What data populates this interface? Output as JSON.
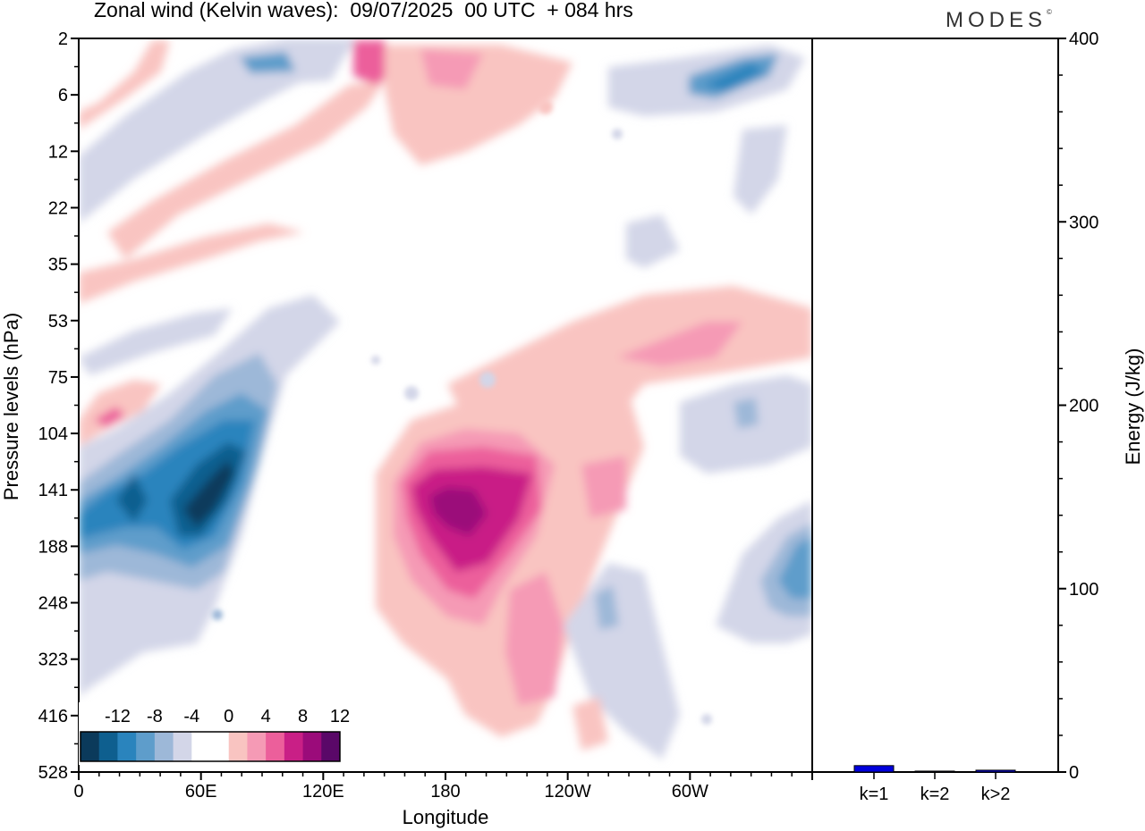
{
  "title": "Zonal wind (Kelvin waves):  09/07/2025  00 UTC  + 084 hrs",
  "logo": "MODES",
  "chart_data": [
    {
      "type": "heatmap",
      "title": "Zonal wind (Kelvin waves):  09/07/2025  00 UTC  + 084 hrs",
      "xlabel": "Longitude",
      "ylabel": "Pressure levels (hPa)",
      "x_ticks": [
        "0",
        "60E",
        "120E",
        "180",
        "120W",
        "60W"
      ],
      "y_ticks": [
        "2",
        "6",
        "12",
        "22",
        "35",
        "53",
        "75",
        "104",
        "141",
        "188",
        "248",
        "323",
        "416",
        "528"
      ],
      "colorbar": {
        "labels": [
          "-12",
          "-8",
          "-4",
          "0",
          "4",
          "8",
          "12"
        ],
        "colors": [
          "#0b3a5b",
          "#0e5f8f",
          "#2a84bd",
          "#5e9dcb",
          "#9db8d8",
          "#d3d6e8",
          "#ffffff",
          "#ffffff",
          "#f9c4c1",
          "#f59ab5",
          "#ec5f9b",
          "#c91f86",
          "#9b0b7a",
          "#5a0868"
        ]
      },
      "features": [
        {
          "sign": "negative",
          "lon": 45,
          "level": 150,
          "peak": -14
        },
        {
          "sign": "positive",
          "lon": 185,
          "level": 150,
          "peak": 14
        },
        {
          "sign": "negative",
          "lon": 355,
          "level": 200,
          "peak": -8
        }
      ]
    },
    {
      "type": "bar",
      "categories": [
        "k=1",
        "k=2",
        "k>2"
      ],
      "values": [
        3.5,
        0.5,
        1
      ],
      "ylabel": "Energy (J/kg)",
      "ylim": [
        0,
        400
      ],
      "y_ticks": [
        0,
        100,
        200,
        300,
        400
      ],
      "bar_color": "#0000dd"
    }
  ]
}
